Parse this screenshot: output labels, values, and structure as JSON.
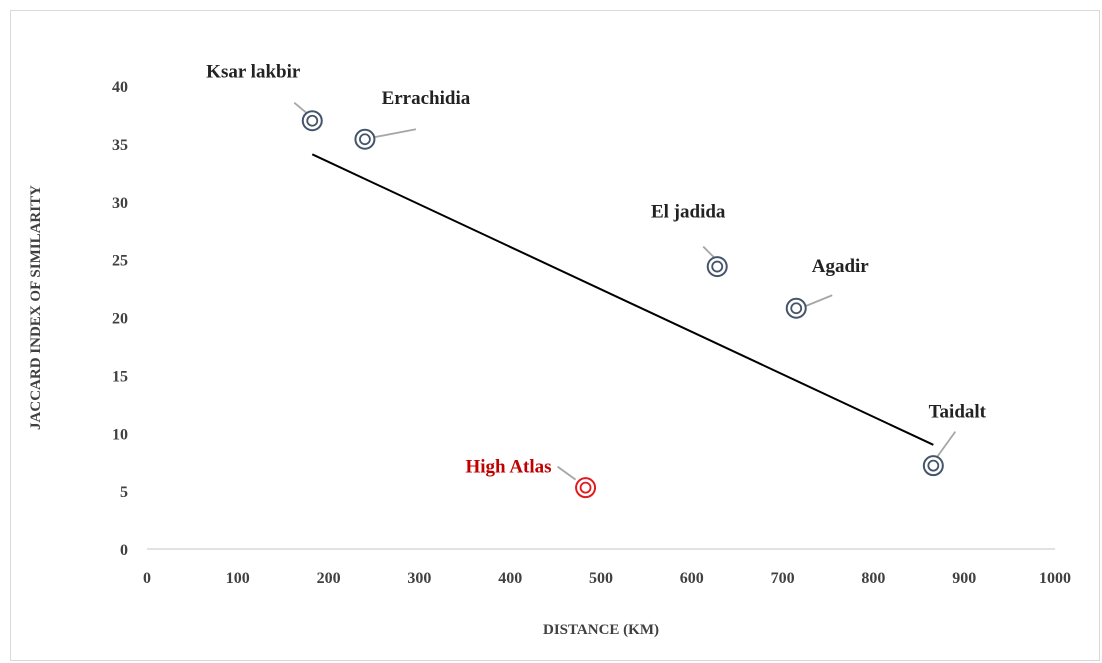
{
  "chart_data": {
    "type": "scatter",
    "title": "",
    "xlabel": "DISTANCE  (KM)",
    "ylabel": "JACCARD INDEX OF SIMILARITY",
    "xlim": [
      0,
      1000
    ],
    "ylim": [
      0,
      40
    ],
    "x_ticks": [
      "0",
      "100",
      "200",
      "300",
      "400",
      "500",
      "600",
      "700",
      "800",
      "900",
      "1000"
    ],
    "y_ticks": [
      "0",
      "5",
      "10",
      "15",
      "20",
      "25",
      "30",
      "35",
      "40"
    ],
    "grid": false,
    "legend": "none",
    "points": [
      {
        "label": "Ksar lakbir",
        "x": 182,
        "y": 37,
        "highlight": false
      },
      {
        "label": "Errachidia",
        "x": 240,
        "y": 35.4,
        "highlight": false
      },
      {
        "label": "El jadida",
        "x": 628,
        "y": 24.4,
        "highlight": false
      },
      {
        "label": "Agadir",
        "x": 715,
        "y": 20.8,
        "highlight": false
      },
      {
        "label": "Taidalt",
        "x": 866,
        "y": 7.2,
        "highlight": false
      },
      {
        "label": "High Atlas",
        "x": 483,
        "y": 5.3,
        "highlight": true
      }
    ],
    "trendline": {
      "x": [
        182,
        866
      ],
      "y": [
        34.1,
        9.0
      ]
    },
    "colors": {
      "marker": "#44546a",
      "highlight": "#e31a1c",
      "label": "#222222",
      "highlight_label": "#c00000",
      "trendline": "#000000",
      "axis": "#d9d9d9",
      "leader": "#a6a6a6"
    }
  }
}
